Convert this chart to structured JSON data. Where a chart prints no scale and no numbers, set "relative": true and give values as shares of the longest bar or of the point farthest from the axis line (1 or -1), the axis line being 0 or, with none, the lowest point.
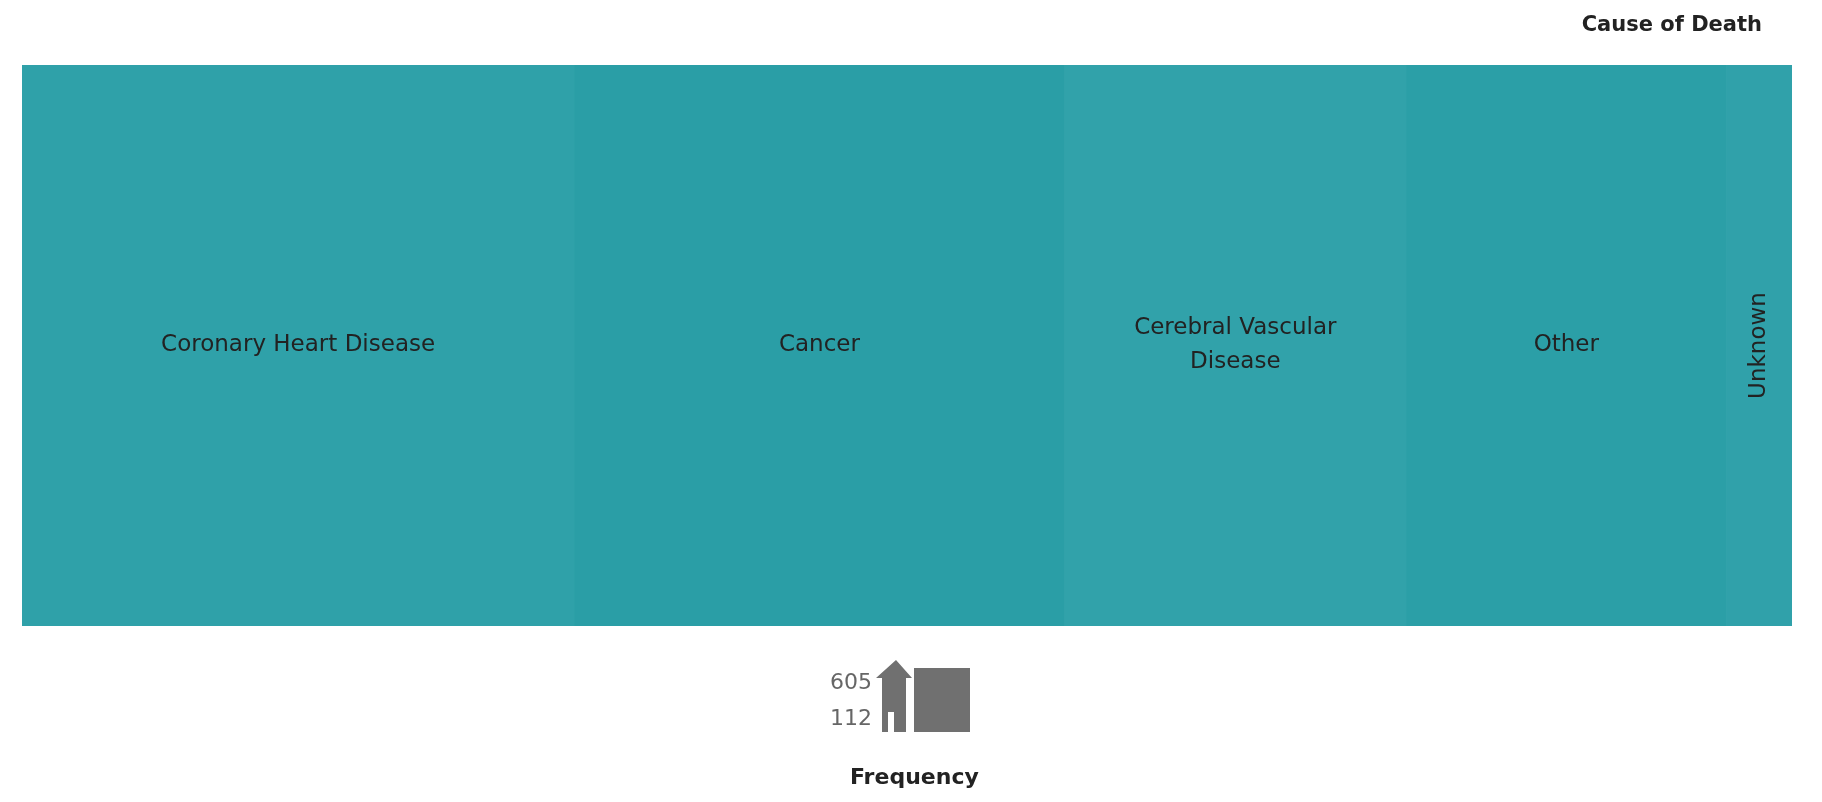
{
  "chart_data": {
    "type": "bar",
    "orientation": "horizontal",
    "stacked": true,
    "relative": true,
    "title": "Cause of Death",
    "legend_title": "Frequency",
    "annotations": [
      "605",
      "112"
    ],
    "categories": [
      null
    ],
    "series": [
      {
        "name": "Coronary Heart Disease",
        "color": "#2fa1a9",
        "values": [
          0.312
        ]
      },
      {
        "name": "Cancer",
        "color": "#2a9ea6",
        "values": [
          0.277
        ]
      },
      {
        "name": "Cerebral Vascular Disease",
        "color": "#31a2aa",
        "values": [
          0.193
        ]
      },
      {
        "name": "Other",
        "color": "#2b9fa7",
        "values": [
          0.181
        ]
      },
      {
        "name": "Unknown",
        "color": "#30a1aa",
        "values": [
          0.037
        ]
      }
    ]
  }
}
